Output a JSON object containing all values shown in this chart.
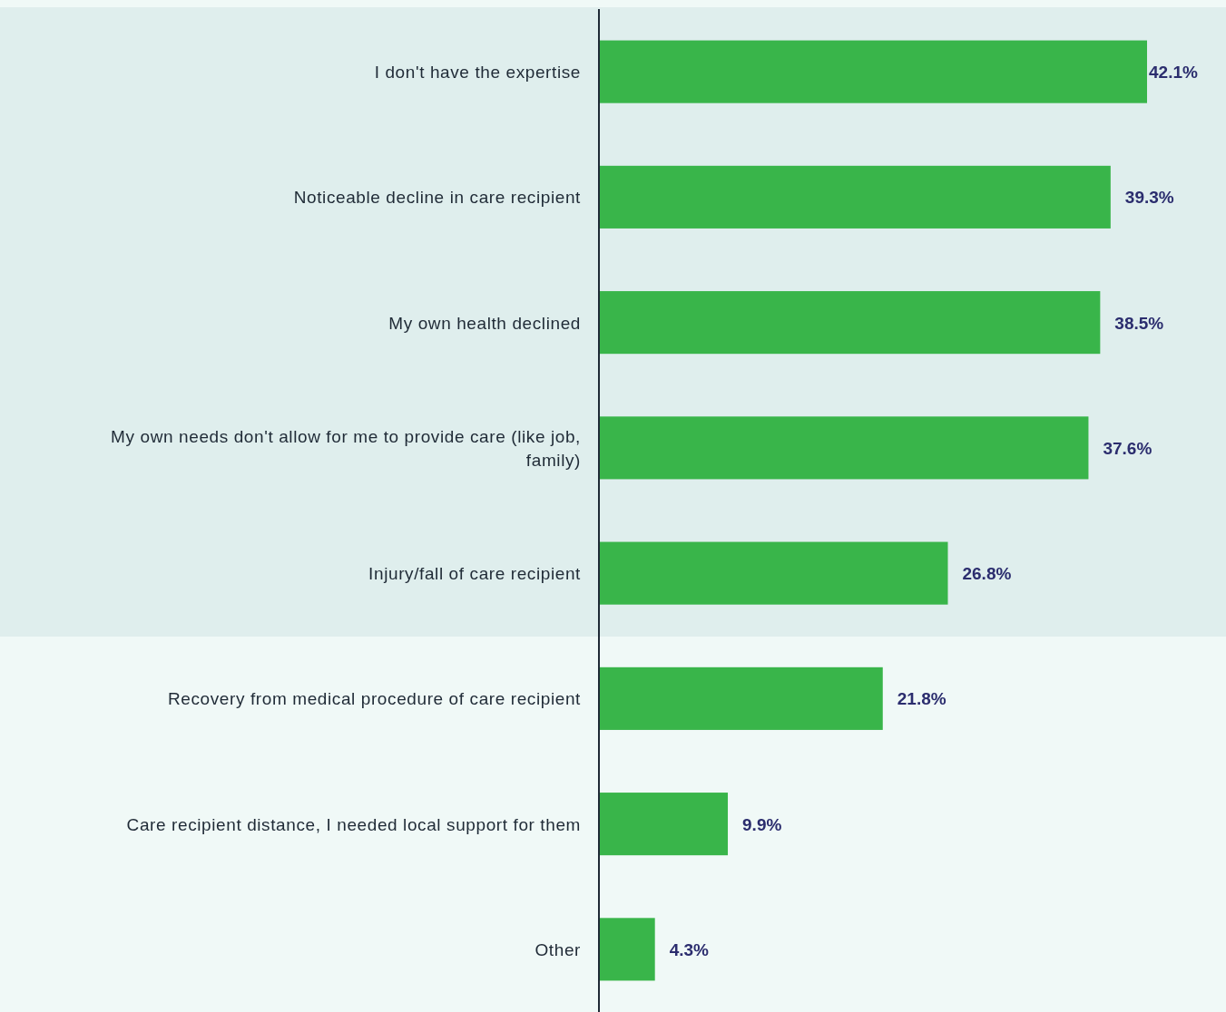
{
  "chart_data": {
    "type": "bar",
    "orientation": "horizontal",
    "categories": [
      "I don't have the expertise",
      "Noticeable decline in care recipient",
      "My own health declined",
      "My own needs don't allow for me to provide care (like job, family)",
      "Injury/fall of care recipient",
      "Recovery from medical procedure of care recipient",
      "Care recipient distance, I needed local support for them",
      "Other"
    ],
    "values": [
      42.1,
      39.3,
      38.5,
      37.6,
      26.8,
      21.8,
      9.9,
      4.3
    ],
    "value_labels": [
      "42.1%",
      "39.3%",
      "38.5%",
      "37.6%",
      "26.8%",
      "21.8%",
      "9.9%",
      "4.3%"
    ],
    "color": "#39b54a"
  }
}
